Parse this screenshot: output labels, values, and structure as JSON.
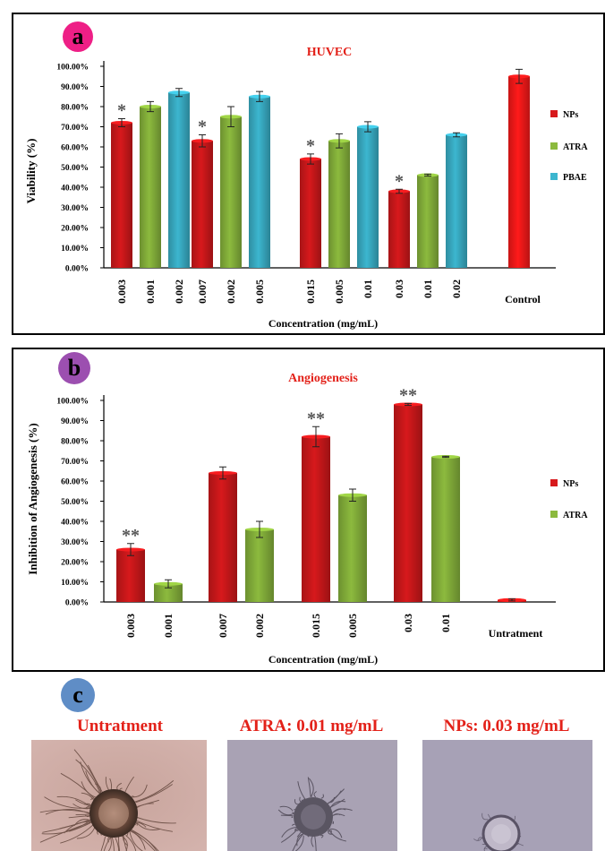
{
  "colors": {
    "nps": "#d7191c",
    "atra": "#8cba3e",
    "pbae": "#3cb6cf",
    "control": "#ff1a1a",
    "title": "#e32119",
    "badge_a": "#ee1f86",
    "badge_b": "#9c4fb0",
    "badge_c": "#5f8dc6"
  },
  "panels": {
    "a": {
      "label": "a"
    },
    "b": {
      "label": "b"
    },
    "c": {
      "label": "c"
    }
  },
  "chart_data": [
    {
      "id": "a",
      "type": "bar",
      "title": "HUVEC",
      "xlabel": "Concentration (mg/mL)",
      "ylabel": "Viability (%)",
      "ylim": [
        0,
        100
      ],
      "yticks": [
        "0.00%",
        "10.00%",
        "20.00%",
        "30.00%",
        "40.00%",
        "50.00%",
        "60.00%",
        "70.00%",
        "80.00%",
        "90.00%",
        "100.00%"
      ],
      "grid": false,
      "legend_position": "right",
      "legend": [
        {
          "name": "NPs",
          "color": "nps"
        },
        {
          "name": "ATRA",
          "color": "atra"
        },
        {
          "name": "PBAE",
          "color": "pbae"
        }
      ],
      "bars": [
        {
          "x": "0.003",
          "series": "NPs",
          "value": 72,
          "error": 2,
          "mark": "*"
        },
        {
          "x": "0.001",
          "series": "ATRA",
          "value": 80,
          "error": 2.5,
          "mark": ""
        },
        {
          "x": "0.002",
          "series": "PBAE",
          "value": 87,
          "error": 2,
          "mark": ""
        },
        {
          "x": "0.007",
          "series": "NPs",
          "value": 63,
          "error": 3,
          "mark": "*"
        },
        {
          "x": "0.002",
          "series": "ATRA",
          "value": 75,
          "error": 5,
          "mark": ""
        },
        {
          "x": "0.005",
          "series": "PBAE",
          "value": 85,
          "error": 2.5,
          "mark": ""
        },
        {
          "x": "0.015",
          "series": "NPs",
          "value": 54,
          "error": 2.5,
          "mark": "*"
        },
        {
          "x": "0.005",
          "series": "ATRA",
          "value": 63,
          "error": 3.5,
          "mark": ""
        },
        {
          "x": "0.01",
          "series": "PBAE",
          "value": 70,
          "error": 2.5,
          "mark": ""
        },
        {
          "x": "0.03",
          "series": "NPs",
          "value": 38,
          "error": 1,
          "mark": "*"
        },
        {
          "x": "0.01",
          "series": "ATRA",
          "value": 46,
          "error": 0.5,
          "mark": ""
        },
        {
          "x": "0.02",
          "series": "PBAE",
          "value": 66,
          "error": 1,
          "mark": ""
        },
        {
          "x": "Control",
          "series": "Control",
          "value": 95,
          "error": 3.5,
          "mark": ""
        }
      ]
    },
    {
      "id": "b",
      "type": "bar",
      "title": "Angiogenesis",
      "xlabel": "Concentration (mg/mL)",
      "ylabel": "Inhibition of Angiogenesis (%)",
      "ylim": [
        0,
        100
      ],
      "yticks": [
        "0.00%",
        "10.00%",
        "20.00%",
        "30.00%",
        "40.00%",
        "50.00%",
        "60.00%",
        "70.00%",
        "80.00%",
        "90.00%",
        "100.00%"
      ],
      "grid": false,
      "legend_position": "right",
      "legend": [
        {
          "name": "NPs",
          "color": "nps"
        },
        {
          "name": "ATRA",
          "color": "atra"
        }
      ],
      "bars": [
        {
          "x": "0.003",
          "series": "NPs",
          "value": 26,
          "error": 3,
          "mark": "**"
        },
        {
          "x": "0.001",
          "series": "ATRA",
          "value": 9,
          "error": 2,
          "mark": ""
        },
        {
          "x": "0.007",
          "series": "NPs",
          "value": 64,
          "error": 3,
          "mark": ""
        },
        {
          "x": "0.002",
          "series": "ATRA",
          "value": 36,
          "error": 4,
          "mark": ""
        },
        {
          "x": "0.015",
          "series": "NPs",
          "value": 82,
          "error": 5,
          "mark": "**"
        },
        {
          "x": "0.005",
          "series": "ATRA",
          "value": 53,
          "error": 3,
          "mark": ""
        },
        {
          "x": "0.03",
          "series": "NPs",
          "value": 98,
          "error": 0.5,
          "mark": "**"
        },
        {
          "x": "0.01",
          "series": "ATRA",
          "value": 72,
          "error": 0.3,
          "mark": ""
        },
        {
          "x": "Untratment",
          "series": "Control",
          "value": 1,
          "error": 0.5,
          "mark": ""
        }
      ]
    }
  ],
  "photos": [
    {
      "title": "Untratment",
      "style": "dense"
    },
    {
      "title": "ATRA: 0.01 mg/mL",
      "style": "medium"
    },
    {
      "title": "NPs: 0.03 mg/mL",
      "style": "sparse"
    }
  ]
}
